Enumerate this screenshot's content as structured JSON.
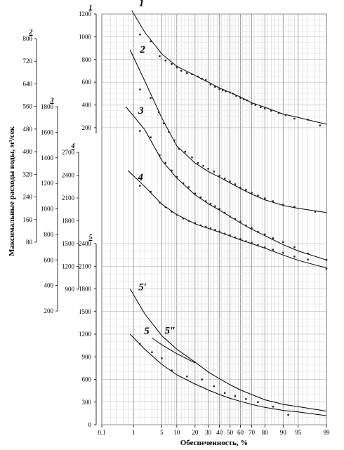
{
  "chart_data": {
    "type": "scatter",
    "title": "",
    "xlabel": "Обеспеченность, %",
    "ylabel": "Максимальные расходы воды, м³/сек",
    "x_scale": "probability",
    "x_ticks": [
      "0.1",
      "1",
      "5",
      "10",
      "20",
      "30",
      "40",
      "50",
      "60",
      "70",
      "80",
      "90",
      "95",
      "99"
    ],
    "y_axes": [
      {
        "id": "1",
        "ticks": [
          "200",
          "400",
          "600",
          "800",
          "1000",
          "1200"
        ]
      },
      {
        "id": "2",
        "ticks": [
          "80",
          "160",
          "240",
          "320",
          "400",
          "480",
          "560",
          "640",
          "720",
          "800"
        ]
      },
      {
        "id": "3",
        "ticks": [
          "200",
          "400",
          "600",
          "800",
          "1000",
          "1200",
          "1400",
          "1600",
          "1800"
        ]
      },
      {
        "id": "4",
        "ticks": [
          "900",
          "1200",
          "1500",
          "1800",
          "2100",
          "2400",
          "2700"
        ]
      },
      {
        "id": "5",
        "ticks": [
          "0",
          "300",
          "600",
          "900",
          "1200",
          "1500",
          "1800",
          "2100",
          "2400"
        ]
      }
    ],
    "series": [
      {
        "name": "1",
        "axis": "1",
        "curve": [
          [
            0.9,
            1230
          ],
          [
            2,
            1040
          ],
          [
            5,
            850
          ],
          [
            10,
            740
          ],
          [
            20,
            660
          ],
          [
            30,
            600
          ],
          [
            40,
            550
          ],
          [
            50,
            510
          ],
          [
            60,
            470
          ],
          [
            70,
            420
          ],
          [
            80,
            380
          ],
          [
            90,
            320
          ],
          [
            95,
            290
          ],
          [
            99,
            230
          ]
        ],
        "points": [
          [
            1.5,
            1020
          ],
          [
            2.8,
            960
          ],
          [
            4.5,
            830
          ],
          [
            6,
            790
          ],
          [
            8,
            760
          ],
          [
            10,
            730
          ],
          [
            12,
            700
          ],
          [
            15,
            680
          ],
          [
            18,
            670
          ],
          [
            22,
            650
          ],
          [
            25,
            630
          ],
          [
            28,
            620
          ],
          [
            32,
            580
          ],
          [
            36,
            560
          ],
          [
            40,
            540
          ],
          [
            43,
            530
          ],
          [
            46,
            520
          ],
          [
            50,
            510
          ],
          [
            53,
            500
          ],
          [
            56,
            480
          ],
          [
            60,
            460
          ],
          [
            63,
            450
          ],
          [
            66,
            440
          ],
          [
            70,
            410
          ],
          [
            73,
            400
          ],
          [
            77,
            380
          ],
          [
            80,
            370
          ],
          [
            84,
            350
          ],
          [
            88,
            330
          ],
          [
            91,
            310
          ],
          [
            94,
            280
          ],
          [
            97,
            270
          ],
          [
            98.5,
            220
          ]
        ]
      },
      {
        "name": "2",
        "axis": "2",
        "curve": [
          [
            0.8,
            760
          ],
          [
            2,
            650
          ],
          [
            5,
            520
          ],
          [
            10,
            420
          ],
          [
            20,
            360
          ],
          [
            30,
            330
          ],
          [
            40,
            310
          ],
          [
            50,
            290
          ],
          [
            60,
            270
          ],
          [
            70,
            250
          ],
          [
            80,
            230
          ],
          [
            90,
            210
          ],
          [
            95,
            200
          ],
          [
            99,
            185
          ]
        ],
        "points": [
          [
            1.5,
            620
          ],
          [
            2.8,
            590
          ],
          [
            4.3,
            540
          ],
          [
            5.5,
            500
          ],
          [
            7,
            470
          ],
          [
            9,
            440
          ],
          [
            11,
            410
          ],
          [
            14,
            400
          ],
          [
            18,
            380
          ],
          [
            22,
            360
          ],
          [
            26,
            350
          ],
          [
            30,
            340
          ],
          [
            35,
            330
          ],
          [
            40,
            315
          ],
          [
            45,
            305
          ],
          [
            50,
            295
          ],
          [
            55,
            285
          ],
          [
            60,
            272
          ],
          [
            65,
            265
          ],
          [
            70,
            255
          ],
          [
            75,
            245
          ],
          [
            80,
            235
          ],
          [
            85,
            225
          ],
          [
            90,
            212
          ],
          [
            94,
            205
          ],
          [
            98,
            188
          ]
        ]
      },
      {
        "name": "3",
        "axis": "3",
        "curve": [
          [
            0.6,
            1800
          ],
          [
            2,
            1620
          ],
          [
            5,
            1380
          ],
          [
            10,
            1240
          ],
          [
            20,
            1110
          ],
          [
            30,
            1040
          ],
          [
            40,
            990
          ],
          [
            50,
            940
          ],
          [
            60,
            890
          ],
          [
            70,
            840
          ],
          [
            80,
            790
          ],
          [
            90,
            720
          ],
          [
            95,
            670
          ],
          [
            99,
            600
          ]
        ],
        "points": [
          [
            1.5,
            1610
          ],
          [
            2.8,
            1560
          ],
          [
            4.5,
            1420
          ],
          [
            6,
            1360
          ],
          [
            8,
            1300
          ],
          [
            10,
            1250
          ],
          [
            13,
            1200
          ],
          [
            16,
            1170
          ],
          [
            20,
            1120
          ],
          [
            24,
            1090
          ],
          [
            28,
            1060
          ],
          [
            32,
            1040
          ],
          [
            36,
            1020
          ],
          [
            40,
            1000
          ],
          [
            45,
            970
          ],
          [
            50,
            940
          ],
          [
            55,
            920
          ],
          [
            60,
            900
          ],
          [
            65,
            870
          ],
          [
            70,
            850
          ],
          [
            75,
            820
          ],
          [
            80,
            800
          ],
          [
            85,
            770
          ],
          [
            90,
            740
          ],
          [
            94,
            700
          ],
          [
            97,
            650
          ],
          [
            99,
            600
          ]
        ]
      },
      {
        "name": "4",
        "axis": "4",
        "curve": [
          [
            0.7,
            2460
          ],
          [
            2,
            2250
          ],
          [
            5,
            2020
          ],
          [
            10,
            1880
          ],
          [
            20,
            1760
          ],
          [
            30,
            1700
          ],
          [
            40,
            1650
          ],
          [
            50,
            1600
          ],
          [
            60,
            1550
          ],
          [
            70,
            1500
          ],
          [
            80,
            1440
          ],
          [
            90,
            1350
          ],
          [
            95,
            1280
          ],
          [
            99,
            1180
          ]
        ],
        "points": [
          [
            1.5,
            2260
          ],
          [
            2.8,
            2180
          ],
          [
            4.5,
            2040
          ],
          [
            6,
            1980
          ],
          [
            8,
            1920
          ],
          [
            10,
            1880
          ],
          [
            13,
            1830
          ],
          [
            16,
            1800
          ],
          [
            20,
            1770
          ],
          [
            24,
            1740
          ],
          [
            28,
            1720
          ],
          [
            32,
            1700
          ],
          [
            36,
            1680
          ],
          [
            40,
            1660
          ],
          [
            45,
            1630
          ],
          [
            50,
            1610
          ],
          [
            55,
            1580
          ],
          [
            60,
            1560
          ],
          [
            65,
            1530
          ],
          [
            70,
            1510
          ],
          [
            75,
            1480
          ],
          [
            80,
            1450
          ],
          [
            85,
            1420
          ],
          [
            90,
            1380
          ],
          [
            94,
            1330
          ],
          [
            97,
            1290
          ],
          [
            99,
            1170
          ]
        ]
      },
      {
        "name": "5",
        "axis": "5",
        "curve": [
          [
            0.8,
            1200
          ],
          [
            2,
            1000
          ],
          [
            5,
            800
          ],
          [
            10,
            660
          ],
          [
            20,
            540
          ],
          [
            30,
            460
          ],
          [
            40,
            400
          ],
          [
            50,
            350
          ],
          [
            60,
            310
          ],
          [
            70,
            270
          ],
          [
            80,
            230
          ],
          [
            90,
            190
          ],
          [
            95,
            170
          ],
          [
            99,
            120
          ]
        ],
        "points": [
          [
            1.5,
            1070
          ],
          [
            3,
            960
          ],
          [
            5,
            880
          ],
          [
            8,
            720
          ],
          [
            15,
            640
          ],
          [
            25,
            600
          ],
          [
            35,
            510
          ],
          [
            45,
            420
          ],
          [
            55,
            380
          ],
          [
            65,
            340
          ],
          [
            75,
            300
          ],
          [
            85,
            240
          ],
          [
            92,
            130
          ]
        ]
      },
      {
        "name": "5′",
        "axis": "5",
        "curve": [
          [
            0.8,
            1800
          ],
          [
            2,
            1470
          ],
          [
            5,
            1180
          ],
          [
            10,
            1000
          ],
          [
            20,
            830
          ],
          [
            30,
            700
          ],
          [
            40,
            610
          ],
          [
            50,
            530
          ],
          [
            60,
            460
          ],
          [
            70,
            400
          ],
          [
            80,
            330
          ],
          [
            90,
            270
          ],
          [
            95,
            240
          ],
          [
            99,
            180
          ]
        ],
        "points": []
      },
      {
        "name": "5″",
        "axis": "5",
        "curve": [
          [
            3,
            1150
          ],
          [
            5,
            1060
          ],
          [
            10,
            940
          ],
          [
            20,
            820
          ]
        ],
        "points": []
      }
    ]
  }
}
